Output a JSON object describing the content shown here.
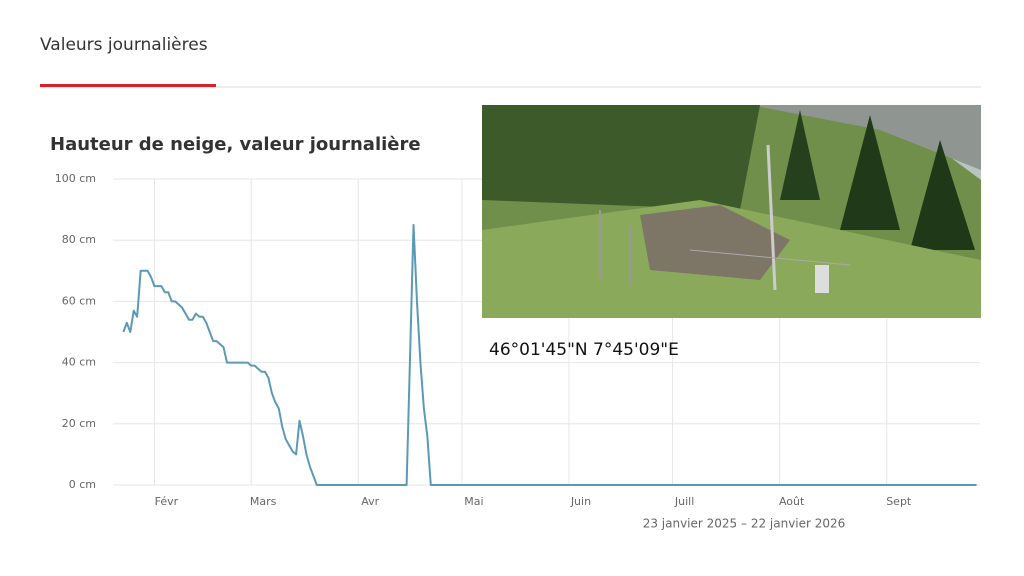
{
  "tab": "Valeurs journalières",
  "chart_data": {
    "type": "line",
    "title": "Hauteur de neige, valeur journalière",
    "caption": "23 janvier 2025 – 22 janvier 2026",
    "x": [
      0,
      1,
      2,
      3,
      4,
      5,
      7,
      8,
      9,
      11,
      12,
      13,
      14,
      15,
      16,
      17,
      18,
      19,
      20,
      21,
      22,
      23,
      24,
      25,
      26,
      27,
      28,
      29,
      30,
      36,
      37,
      38,
      39,
      40,
      41,
      42,
      43,
      44,
      45,
      46,
      47,
      48,
      49,
      50,
      51,
      52,
      53,
      54,
      55,
      56,
      82,
      83,
      84,
      85,
      86,
      87,
      88,
      89,
      247
    ],
    "series": [
      {
        "color": "#5b9ab5",
        "values": [
          50,
          53,
          50,
          57,
          55,
          70,
          70,
          68,
          65,
          65,
          63,
          63,
          60,
          60,
          59,
          58,
          56,
          54,
          54,
          56,
          55,
          55,
          53,
          50,
          47,
          47,
          46,
          45,
          40,
          40,
          39,
          39,
          38,
          37,
          37,
          35,
          30,
          27,
          25,
          19,
          15,
          13,
          11,
          10,
          21,
          16,
          10,
          6,
          3,
          0,
          0,
          42,
          85,
          60,
          40,
          25,
          16,
          0,
          0
        ]
      }
    ],
    "xlim": [
      -3,
      248
    ],
    "xticks": [
      {
        "value": 9,
        "label": "Févr"
      },
      {
        "value": 37,
        "label": "Mars"
      },
      {
        "value": 68,
        "label": "Avr"
      },
      {
        "value": 98,
        "label": "Mai"
      },
      {
        "value": 129,
        "label": "Juin"
      },
      {
        "value": 159,
        "label": "Juill"
      },
      {
        "value": 190,
        "label": "Août"
      },
      {
        "value": 221,
        "label": "Sept"
      }
    ],
    "ylim": [
      0,
      100
    ],
    "yticks": [
      {
        "value": 0,
        "label": "0 cm"
      },
      {
        "value": 20,
        "label": "20 cm"
      },
      {
        "value": 40,
        "label": "40 cm"
      },
      {
        "value": 60,
        "label": "60 cm"
      },
      {
        "value": 80,
        "label": "80 cm"
      },
      {
        "value": 100,
        "label": "100 cm"
      }
    ],
    "grid": true
  },
  "photo": {
    "caption": "46°01'45\"N 7°45'09\"E"
  }
}
